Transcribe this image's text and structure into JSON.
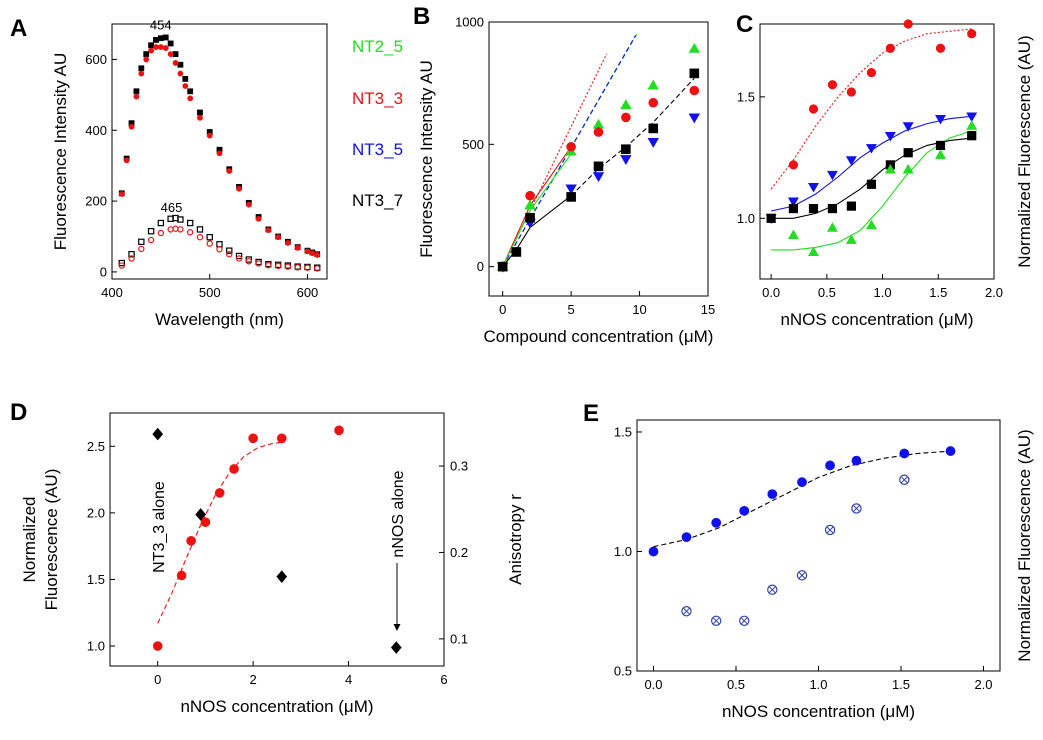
{
  "figure": {
    "legend_entries": [
      {
        "name": "NT2_5",
        "color": "#22dd22"
      },
      {
        "name": "NT3_3",
        "color": "#ee1111"
      },
      {
        "name": "NT3_5",
        "color": "#1111ee"
      },
      {
        "name": "NT3_7",
        "color": "#000000"
      }
    ]
  },
  "chart_data": [
    {
      "panel": "A",
      "type": "scatter",
      "xlabel": "Wavelength (nm)",
      "ylabel": "Fluorescence Intensity AU",
      "xlim": [
        400,
        620
      ],
      "ylim": [
        -20,
        700
      ],
      "xticks": [
        400,
        500,
        600
      ],
      "yticks": [
        0,
        200,
        400,
        600
      ],
      "annotations": [
        {
          "text": "454",
          "x": 454,
          "y": 668
        },
        {
          "text": "465",
          "x": 465,
          "y": 152
        }
      ],
      "series": [
        {
          "color": "#000000",
          "marker": "square",
          "filled": true,
          "x": [
            410,
            415,
            420,
            425,
            430,
            435,
            440,
            445,
            450,
            455,
            460,
            465,
            470,
            475,
            480,
            490,
            500,
            510,
            520,
            530,
            540,
            550,
            560,
            570,
            580,
            590,
            600,
            605,
            610
          ],
          "y": [
            222,
            320,
            420,
            510,
            575,
            615,
            640,
            655,
            660,
            662,
            645,
            615,
            585,
            545,
            510,
            450,
            395,
            345,
            290,
            240,
            195,
            155,
            120,
            100,
            85,
            70,
            60,
            55,
            50
          ]
        },
        {
          "color": "#ee1111",
          "marker": "circle",
          "filled": true,
          "x": [
            410,
            415,
            420,
            425,
            430,
            435,
            440,
            445,
            450,
            455,
            460,
            465,
            470,
            475,
            480,
            490,
            500,
            510,
            520,
            530,
            540,
            550,
            560,
            570,
            580,
            590,
            600,
            605,
            610
          ],
          "y": [
            220,
            315,
            410,
            495,
            560,
            600,
            625,
            635,
            635,
            632,
            615,
            590,
            560,
            525,
            490,
            435,
            385,
            335,
            285,
            235,
            190,
            150,
            118,
            98,
            82,
            68,
            58,
            53,
            48
          ]
        },
        {
          "color": "#000000",
          "marker": "square",
          "filled": false,
          "x": [
            410,
            420,
            430,
            440,
            450,
            460,
            465,
            470,
            480,
            490,
            500,
            510,
            520,
            530,
            540,
            550,
            560,
            570,
            580,
            590,
            600,
            610
          ],
          "y": [
            25,
            50,
            85,
            115,
            138,
            150,
            152,
            148,
            138,
            120,
            98,
            78,
            60,
            45,
            35,
            28,
            22,
            20,
            18,
            15,
            14,
            12
          ]
        },
        {
          "color": "#ee1111",
          "marker": "circle",
          "filled": false,
          "x": [
            410,
            420,
            430,
            440,
            450,
            460,
            465,
            470,
            480,
            490,
            500,
            510,
            520,
            530,
            540,
            550,
            560,
            570,
            580,
            590,
            600,
            610
          ],
          "y": [
            18,
            38,
            65,
            90,
            110,
            120,
            122,
            120,
            112,
            98,
            80,
            64,
            50,
            38,
            30,
            24,
            19,
            17,
            15,
            13,
            12,
            10
          ]
        }
      ]
    },
    {
      "panel": "B",
      "type": "scatter",
      "xlabel": "Compound concentration (μM)",
      "ylabel": "Fluorescence Intensity AU",
      "xlim": [
        -1,
        15
      ],
      "ylim": [
        -120,
        1000
      ],
      "xticks": [
        0,
        5,
        10,
        15
      ],
      "yticks": [
        0,
        500,
        1000
      ],
      "series": [
        {
          "name": "NT2_5",
          "color": "#22dd22",
          "marker": "triangle-up",
          "x": [
            0,
            2,
            5,
            7,
            9,
            11,
            14
          ],
          "y": [
            0,
            250,
            470,
            580,
            660,
            740,
            890
          ]
        },
        {
          "name": "NT3_3",
          "color": "#ee1111",
          "marker": "circle",
          "x": [
            0,
            2,
            5,
            7,
            9,
            11,
            14
          ],
          "y": [
            0,
            290,
            490,
            550,
            610,
            670,
            720
          ]
        },
        {
          "name": "NT3_5",
          "color": "#1111ee",
          "marker": "triangle-down",
          "x": [
            0,
            2,
            5,
            7,
            9,
            11,
            14
          ],
          "y": [
            0,
            180,
            320,
            370,
            440,
            510,
            610
          ]
        },
        {
          "name": "NT3_7",
          "color": "#000000",
          "marker": "square",
          "x": [
            0,
            1,
            2,
            5,
            7,
            9,
            11,
            14
          ],
          "y": [
            0,
            60,
            200,
            285,
            410,
            480,
            565,
            790
          ]
        }
      ],
      "fits": [
        {
          "color": "#ee1111",
          "style": "dotted",
          "x": [
            0,
            7.6
          ],
          "y": [
            0,
            870
          ]
        },
        {
          "color": "#22dd22",
          "style": "dashed",
          "x": [
            0,
            9.8
          ],
          "y": [
            0,
            950
          ]
        },
        {
          "color": "#1111ee",
          "style": "dashed",
          "x": [
            0,
            9.7
          ],
          "y": [
            0,
            945
          ]
        },
        {
          "color": "#ee1111",
          "style": "solid",
          "x": [
            0,
            2,
            5
          ],
          "y": [
            0,
            250,
            490
          ]
        },
        {
          "color": "#22dd22",
          "style": "solid",
          "x": [
            0,
            2,
            5
          ],
          "y": [
            0,
            230,
            460
          ]
        },
        {
          "color": "#000000",
          "style": "solid",
          "x": [
            0,
            1,
            2,
            5
          ],
          "y": [
            0,
            70,
            160,
            290
          ]
        },
        {
          "color": "#000000",
          "style": "dashed",
          "x": [
            5,
            7,
            9,
            11,
            14
          ],
          "y": [
            290,
            400,
            490,
            590,
            770
          ]
        }
      ]
    },
    {
      "panel": "C",
      "type": "scatter",
      "xlabel": "nNOS concentration (μM)",
      "ylabel": "Normalized Fluorescence (AU)",
      "xlim": [
        -0.1,
        2.0
      ],
      "ylim": [
        0.75,
        1.8
      ],
      "xticks": [
        0.0,
        0.5,
        1.0,
        1.5,
        2.0
      ],
      "yticks": [
        1.0,
        1.5
      ],
      "series": [
        {
          "name": "NT3_3",
          "color": "#ee1111",
          "marker": "circle",
          "x": [
            0.2,
            0.38,
            0.55,
            0.72,
            0.9,
            1.07,
            1.23,
            1.52,
            1.8
          ],
          "y": [
            1.22,
            1.45,
            1.55,
            1.52,
            1.6,
            1.7,
            1.8,
            1.7,
            1.76
          ]
        },
        {
          "name": "NT3_5",
          "color": "#1111ee",
          "marker": "triangle-down",
          "x": [
            0,
            0.2,
            0.38,
            0.55,
            0.72,
            0.9,
            1.07,
            1.23,
            1.52,
            1.8
          ],
          "y": [
            1.0,
            1.07,
            1.13,
            1.18,
            1.24,
            1.29,
            1.34,
            1.38,
            1.41,
            1.42
          ]
        },
        {
          "name": "NT3_7",
          "color": "#000000",
          "marker": "square",
          "x": [
            0,
            0.2,
            0.38,
            0.55,
            0.72,
            0.9,
            1.07,
            1.23,
            1.52,
            1.8
          ],
          "y": [
            1.0,
            1.04,
            1.04,
            1.04,
            1.05,
            1.14,
            1.22,
            1.27,
            1.3,
            1.34
          ]
        },
        {
          "name": "NT2_5",
          "color": "#22dd22",
          "marker": "triangle-up",
          "x": [
            0.2,
            0.38,
            0.55,
            0.72,
            0.9,
            1.07,
            1.23,
            1.52,
            1.8
          ],
          "y": [
            0.93,
            0.86,
            0.96,
            0.91,
            0.97,
            1.2,
            1.2,
            1.26,
            1.38
          ]
        }
      ],
      "fits": [
        {
          "color": "#ee1111",
          "style": "dotted",
          "x": [
            0,
            0.2,
            0.4,
            0.6,
            0.8,
            1.0,
            1.2,
            1.4,
            1.6,
            1.8
          ],
          "y": [
            1.12,
            1.24,
            1.38,
            1.5,
            1.6,
            1.68,
            1.73,
            1.76,
            1.77,
            1.78
          ]
        },
        {
          "color": "#1111ee",
          "style": "solid",
          "x": [
            0,
            0.2,
            0.4,
            0.6,
            0.8,
            1.0,
            1.2,
            1.4,
            1.6,
            1.8
          ],
          "y": [
            1.03,
            1.05,
            1.1,
            1.17,
            1.25,
            1.31,
            1.36,
            1.39,
            1.41,
            1.42
          ]
        },
        {
          "color": "#000000",
          "style": "solid",
          "x": [
            0,
            0.2,
            0.4,
            0.6,
            0.8,
            1.0,
            1.2,
            1.4,
            1.6,
            1.8
          ],
          "y": [
            1.0,
            1.0,
            1.02,
            1.06,
            1.12,
            1.2,
            1.26,
            1.3,
            1.32,
            1.33
          ]
        },
        {
          "color": "#22dd22",
          "style": "solid",
          "x": [
            0,
            0.2,
            0.4,
            0.6,
            0.8,
            1.0,
            1.2,
            1.4,
            1.6,
            1.8
          ],
          "y": [
            0.87,
            0.87,
            0.88,
            0.9,
            0.95,
            1.05,
            1.17,
            1.27,
            1.33,
            1.36
          ]
        }
      ]
    },
    {
      "panel": "D",
      "type": "scatter",
      "xlabel": "nNOS concentration (μM)",
      "ylabel": "Normalized Fluorescence (AU)",
      "y2label": "Anisotropy r",
      "xlim": [
        -1,
        6
      ],
      "ylim": [
        0.85,
        2.75
      ],
      "y2lim": [
        0.0686,
        0.3614
      ],
      "xticks": [
        0,
        2,
        4,
        6
      ],
      "yticks": [
        1.0,
        1.5,
        2.0,
        2.5
      ],
      "y2ticks": [
        0.1,
        0.2,
        0.3
      ],
      "annotations": [
        {
          "text": "NT3_3 alone"
        },
        {
          "text": "nNOS alone"
        }
      ],
      "series": [
        {
          "color": "#ee1111",
          "marker": "circle",
          "axis": "left",
          "x": [
            0,
            0.5,
            0.7,
            1.0,
            1.3,
            1.6,
            2.0,
            2.6,
            3.8
          ],
          "y": [
            1.0,
            1.53,
            1.79,
            1.93,
            2.15,
            2.33,
            2.56,
            2.56,
            2.62
          ]
        },
        {
          "color": "#000000",
          "marker": "diamond",
          "axis": "right",
          "x": [
            0,
            0.9,
            2.6,
            5.0
          ],
          "y": [
            0.337,
            0.244,
            0.172,
            0.09
          ]
        }
      ],
      "fits": [
        {
          "color": "#ee1111",
          "style": "dashed",
          "axis": "left",
          "x": [
            0,
            0.3,
            0.6,
            0.9,
            1.2,
            1.5,
            1.8,
            2.1,
            2.4,
            2.6
          ],
          "y": [
            1.17,
            1.4,
            1.66,
            1.91,
            2.13,
            2.3,
            2.42,
            2.49,
            2.52,
            2.53
          ]
        }
      ]
    },
    {
      "panel": "E",
      "type": "scatter",
      "xlabel": "nNOS concentration (μM)",
      "ylabel": "Normalized Fluorescence (AU)",
      "xlim": [
        -0.1,
        2.1
      ],
      "ylim": [
        0.5,
        1.55
      ],
      "xticks": [
        0.0,
        0.5,
        1.0,
        1.5,
        2.0
      ],
      "yticks": [
        0.5,
        1.0,
        1.5
      ],
      "series": [
        {
          "color": "#1111ee",
          "marker": "circle",
          "filled": true,
          "x": [
            0,
            0.2,
            0.38,
            0.55,
            0.72,
            0.9,
            1.07,
            1.23,
            1.52,
            1.8
          ],
          "y": [
            1.0,
            1.06,
            1.12,
            1.17,
            1.24,
            1.29,
            1.36,
            1.38,
            1.41,
            1.42
          ]
        },
        {
          "color": "#3344aa",
          "marker": "circle-cross",
          "filled": false,
          "x": [
            0.2,
            0.38,
            0.55,
            0.72,
            0.9,
            1.07,
            1.23,
            1.52
          ],
          "y": [
            0.75,
            0.71,
            0.71,
            0.84,
            0.9,
            1.09,
            1.18,
            1.3
          ]
        }
      ],
      "fits": [
        {
          "color": "#000000",
          "style": "dashed",
          "x": [
            0,
            0.2,
            0.4,
            0.6,
            0.8,
            1.0,
            1.2,
            1.4,
            1.6,
            1.8
          ],
          "y": [
            1.02,
            1.05,
            1.1,
            1.17,
            1.24,
            1.31,
            1.36,
            1.39,
            1.41,
            1.42
          ]
        }
      ]
    }
  ]
}
